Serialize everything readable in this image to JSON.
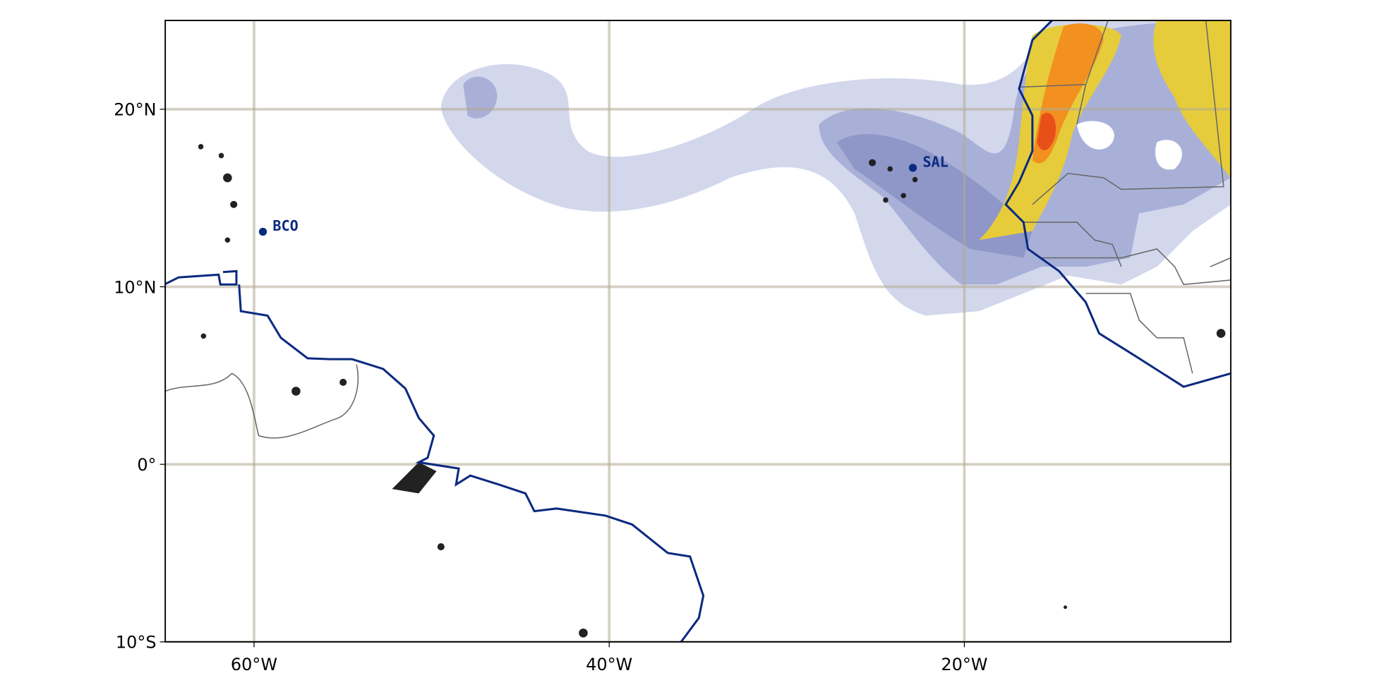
{
  "map": {
    "xlim": [
      -65,
      -5
    ],
    "ylim": [
      -10,
      25
    ],
    "xticks": [
      {
        "value": -60,
        "label": "60°W"
      },
      {
        "value": -40,
        "label": "40°W"
      },
      {
        "value": -20,
        "label": "20°W"
      }
    ],
    "yticks": [
      {
        "value": 20,
        "label": "20°N"
      },
      {
        "value": 10,
        "label": "10°N"
      },
      {
        "value": 0,
        "label": "0°"
      },
      {
        "value": -10,
        "label": "10°S"
      }
    ],
    "stations": [
      {
        "name": "BCO",
        "lon": -59.5,
        "lat": 13.1
      },
      {
        "name": "SAL",
        "lon": -22.9,
        "lat": 16.7
      }
    ]
  }
}
